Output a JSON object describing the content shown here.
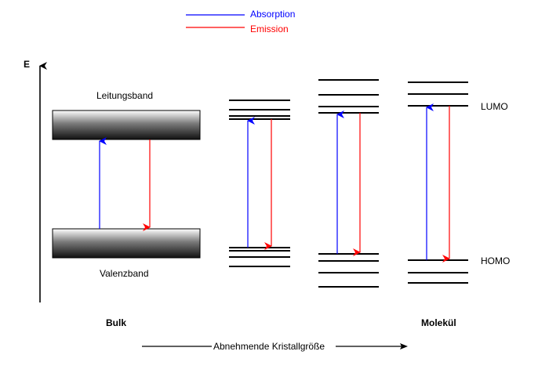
{
  "legend": {
    "absorption": "Absorption",
    "emission": "Emission",
    "absorption_color": "#0000ff",
    "emission_color": "#ff0000"
  },
  "axis": {
    "energy": "E"
  },
  "labels": {
    "conduction_band": "Leitungsband",
    "valence_band": "Valenzband",
    "lumo": "LUMO",
    "homo": "HOMO",
    "bulk": "Bulk",
    "molecule": "Molekül",
    "decreasing_size": "Abnehmende Kristallgröße"
  },
  "colors": {
    "line": "#000000",
    "band_gradient_light": "#ffffff",
    "band_gradient_dark": "#1a1a1a"
  }
}
